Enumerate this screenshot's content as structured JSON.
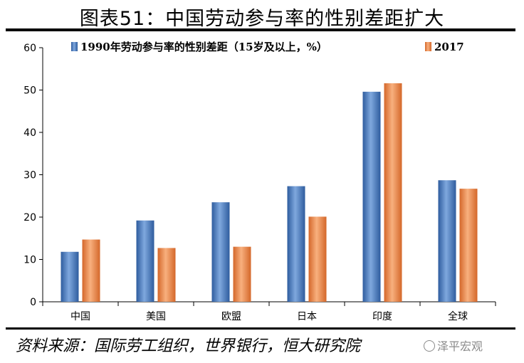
{
  "title": "图表51：中国劳动参与率的性别差距扩大",
  "source": "资料来源：国际劳工组织，世界银行，恒大研究院",
  "watermark": "泽平宏观",
  "colors": {
    "series1": "#4A7EC4",
    "series2": "#EE8A44",
    "axis": "#000000"
  },
  "chart_data": {
    "type": "bar",
    "categories": [
      "中国",
      "美国",
      "欧盟",
      "日本",
      "印度",
      "全球"
    ],
    "series": [
      {
        "name": "1990年劳动参与率的性别差距（15岁及以上，%）",
        "values": [
          11.8,
          19.2,
          23.5,
          27.3,
          49.6,
          28.7
        ]
      },
      {
        "name": "2017",
        "values": [
          14.7,
          12.7,
          13.0,
          20.1,
          51.6,
          26.7
        ]
      }
    ],
    "ylim": [
      0,
      60
    ],
    "yticks": [
      0,
      10,
      20,
      30,
      40,
      50,
      60
    ],
    "grid": false,
    "legend_position": "top"
  }
}
